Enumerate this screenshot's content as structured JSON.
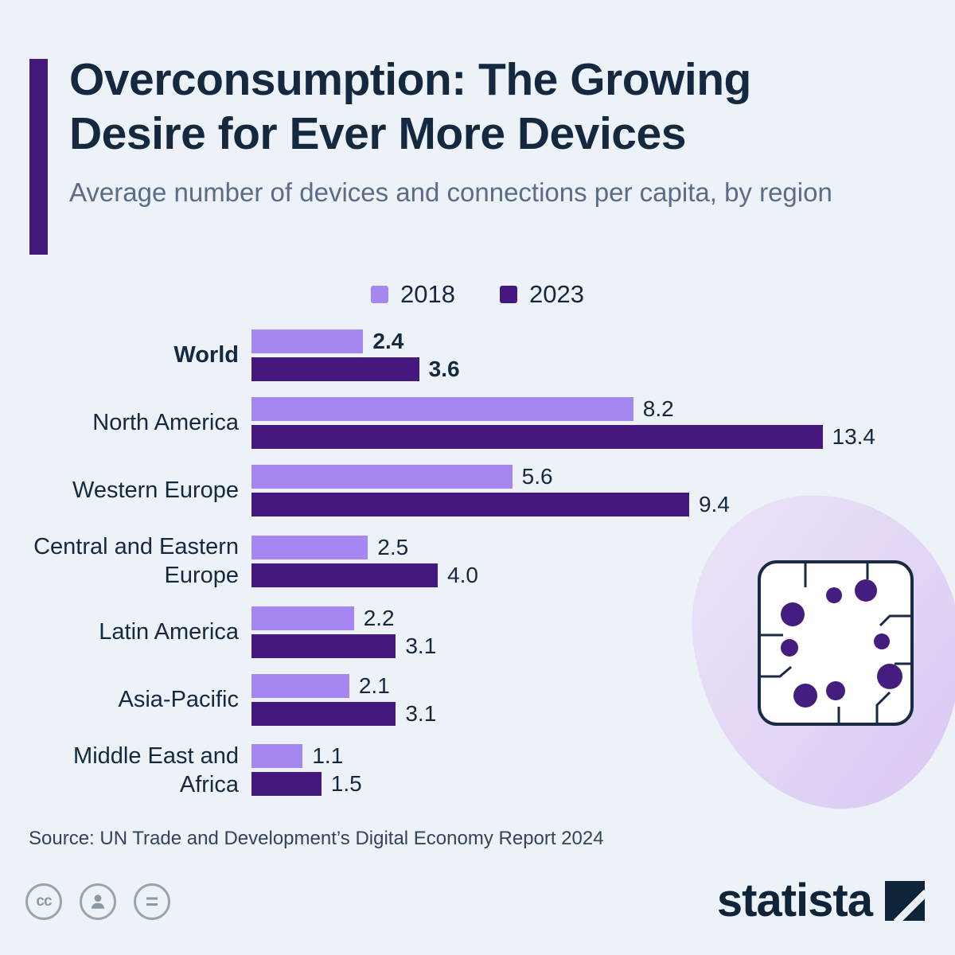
{
  "header": {
    "title_line1": "Overconsumption: The Growing",
    "title_line2": "Desire for Ever More Devices",
    "subtitle": "Average number of devices and connections per capita, by region"
  },
  "legend": [
    {
      "label": "2018",
      "color": "#a687f2"
    },
    {
      "label": "2023",
      "color": "#45187e"
    }
  ],
  "chart_data": {
    "type": "bar",
    "orientation": "horizontal",
    "title": "Overconsumption: The Growing Desire for Ever More Devices",
    "subtitle": "Average number of devices and connections per capita, by region",
    "categories": [
      "World",
      "North America",
      "Western Europe",
      "Central and Eastern Europe",
      "Latin America",
      "Asia-Pacific",
      "Middle East and Africa"
    ],
    "series": [
      {
        "name": "2018",
        "color": "#a687f2",
        "values": [
          2.4,
          8.2,
          5.6,
          2.5,
          2.2,
          2.1,
          1.1
        ],
        "labels": [
          "2.4",
          "8.2",
          "5.6",
          "2.5",
          "2.2",
          "2.1",
          "1.1"
        ]
      },
      {
        "name": "2023",
        "color": "#45187e",
        "values": [
          3.6,
          13.4,
          9.4,
          4.0,
          3.1,
          3.1,
          1.5
        ],
        "labels": [
          "3.6",
          "13.4",
          "9.4",
          "4.0",
          "3.1",
          "3.1",
          "1.5"
        ]
      }
    ],
    "xlim": [
      0,
      13.4
    ],
    "grid": false,
    "legend_position": "top-center",
    "value_labels": true,
    "bold_category": "World"
  },
  "source": "Source: UN Trade and Development’s Digital Economy Report 2024",
  "footer": {
    "brand": "statista",
    "license_icons": [
      {
        "name": "cc-icon",
        "glyph": "cc"
      },
      {
        "name": "person-icon",
        "glyph": "person"
      },
      {
        "name": "equals-icon",
        "glyph": "="
      }
    ]
  },
  "colors": {
    "background": "#edf2f8",
    "accent_bar": "#45187e",
    "title_text": "#14293f",
    "subtitle_text": "#5a6c88",
    "bar_2018": "#a687f2",
    "bar_2023": "#45187e"
  }
}
